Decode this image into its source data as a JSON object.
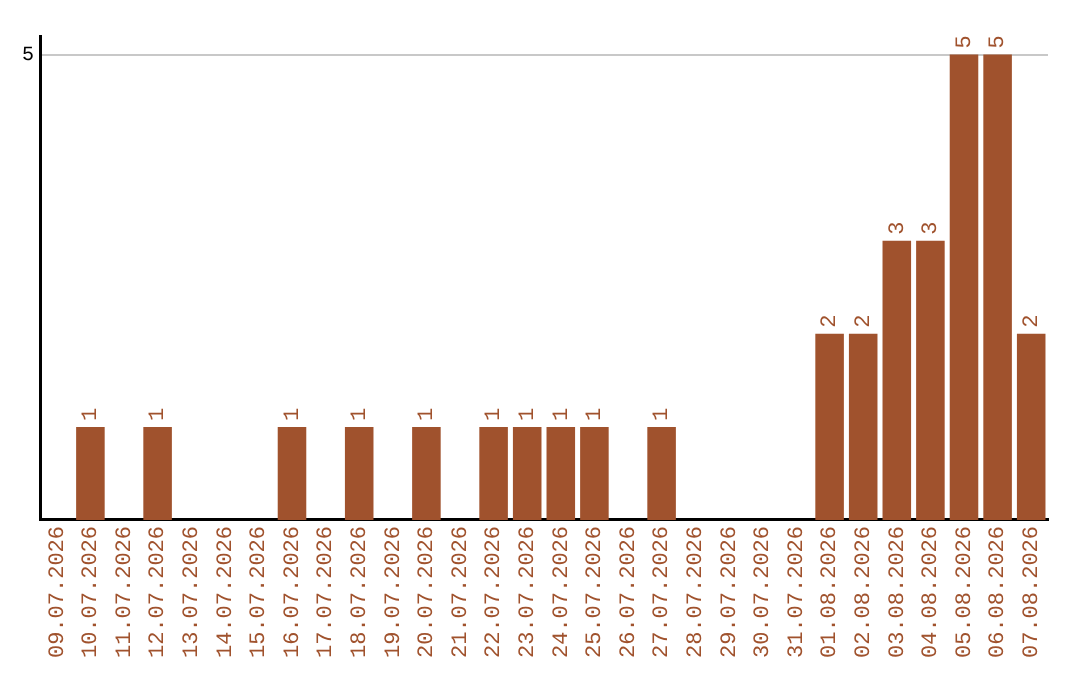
{
  "chart_data": {
    "type": "bar",
    "categories": [
      "09.07.2026",
      "10.07.2026",
      "11.07.2026",
      "12.07.2026",
      "13.07.2026",
      "14.07.2026",
      "15.07.2026",
      "16.07.2026",
      "17.07.2026",
      "18.07.2026",
      "19.07.2026",
      "20.07.2026",
      "21.07.2026",
      "22.07.2026",
      "23.07.2026",
      "24.07.2026",
      "25.07.2026",
      "26.07.2026",
      "27.07.2026",
      "28.07.2026",
      "29.07.2026",
      "30.07.2026",
      "31.07.2026",
      "01.08.2026",
      "02.08.2026",
      "03.08.2026",
      "04.08.2026",
      "05.08.2026",
      "06.08.2026",
      "07.08.2026"
    ],
    "values": [
      0,
      1,
      0,
      1,
      0,
      0,
      0,
      1,
      0,
      1,
      0,
      1,
      0,
      1,
      1,
      1,
      1,
      0,
      1,
      0,
      0,
      0,
      0,
      2,
      2,
      3,
      3,
      5,
      5,
      2
    ],
    "color": "#a0522d",
    "ylim": [
      0,
      5.2
    ],
    "yticks": [
      5
    ],
    "grid": "y",
    "value_labels": [
      null,
      "1",
      null,
      "1",
      null,
      null,
      null,
      "1",
      null,
      "1",
      null,
      "1",
      null,
      "1",
      "1",
      "1",
      "1",
      null,
      "1",
      null,
      null,
      null,
      null,
      "2",
      "2",
      "3",
      "3",
      "5",
      "5",
      "2"
    ]
  }
}
